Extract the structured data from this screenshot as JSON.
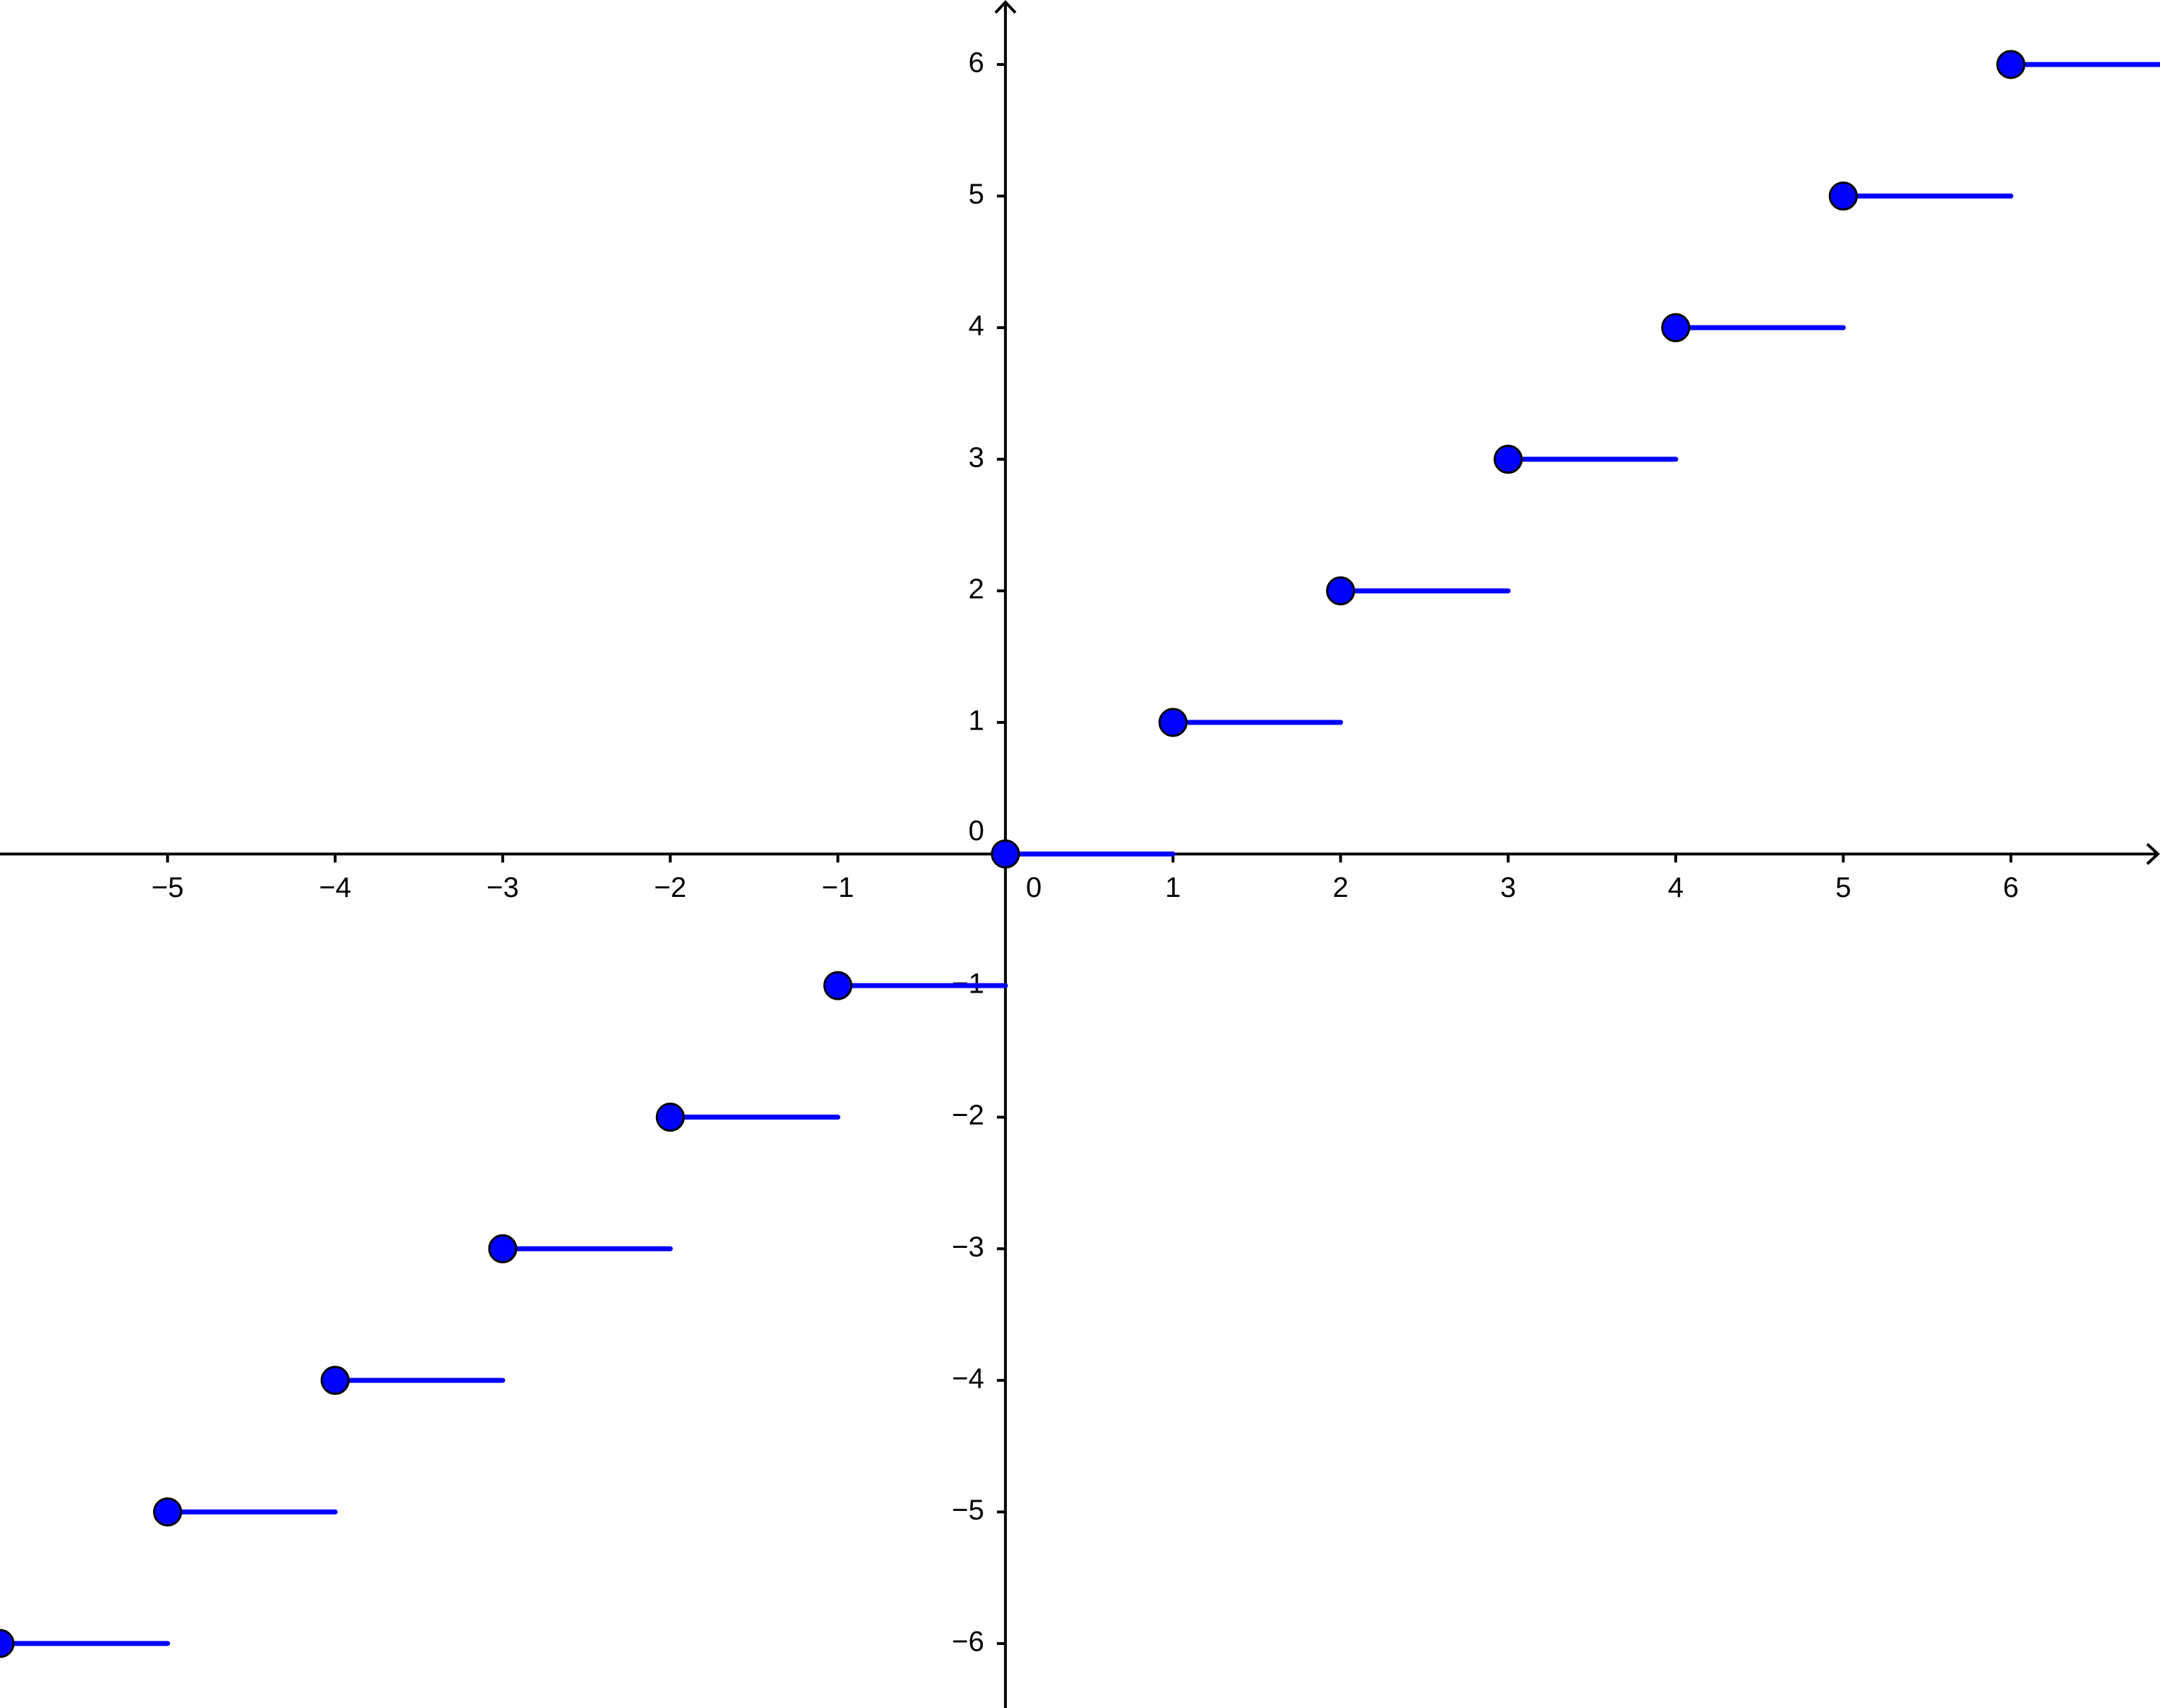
{
  "chart_data": {
    "type": "step",
    "x": [
      -6,
      -5,
      -4,
      -3,
      -2,
      -1,
      0,
      1,
      2,
      3,
      4,
      5,
      6
    ],
    "values": [
      -6,
      -5,
      -4,
      -3,
      -2,
      -1,
      0,
      1,
      2,
      3,
      4,
      5,
      6
    ],
    "color": "#0000ff",
    "xlim": [
      -6,
      6.89
    ],
    "ylim": [
      -6.49,
      6.49
    ],
    "xticks": [
      {
        "value": -5,
        "label": "−5"
      },
      {
        "value": -4,
        "label": "−4"
      },
      {
        "value": -3,
        "label": "−3"
      },
      {
        "value": -2,
        "label": "−2"
      },
      {
        "value": -1,
        "label": "−1"
      },
      0,
      1,
      2,
      3,
      4,
      5,
      6
    ],
    "yticks": [
      {
        "value": -6,
        "label": "−6"
      },
      {
        "value": -5,
        "label": "−5"
      },
      {
        "value": -4,
        "label": "−4"
      },
      {
        "value": -3,
        "label": "−3"
      },
      {
        "value": -2,
        "label": "−2"
      },
      {
        "value": -1,
        "label": "−1"
      },
      0,
      1,
      2,
      3,
      4,
      5,
      6
    ],
    "grid": false
  }
}
